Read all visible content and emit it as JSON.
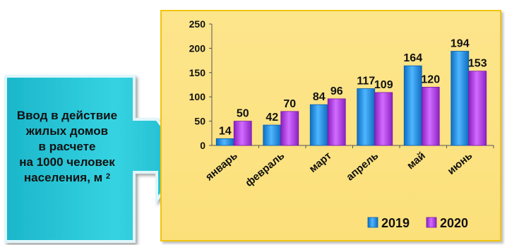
{
  "callout": {
    "line1": "Ввод в действие",
    "line2": "жилых домов",
    "line3": "в расчете",
    "line4": "на 1000 человек",
    "line5": "населения, м",
    "line5_sup": "2",
    "fill_color": "#22c4d6",
    "arrow_icon": "right-arrow-callout"
  },
  "chart_data": {
    "type": "bar",
    "categories": [
      "январь",
      "февраль",
      "март",
      "апрель",
      "май",
      "июнь"
    ],
    "series": [
      {
        "name": "2019",
        "values": [
          14,
          42,
          84,
          117,
          164,
          194
        ],
        "color": "#1e90e6"
      },
      {
        "name": "2020",
        "values": [
          50,
          70,
          96,
          109,
          120,
          153
        ],
        "color": "#b23ae0"
      }
    ],
    "ylim": [
      0,
      250
    ],
    "yticks": [
      0,
      50,
      100,
      150,
      200,
      250
    ],
    "grid": false,
    "legend_position": "bottom-right",
    "background_color": "#fde58c"
  }
}
